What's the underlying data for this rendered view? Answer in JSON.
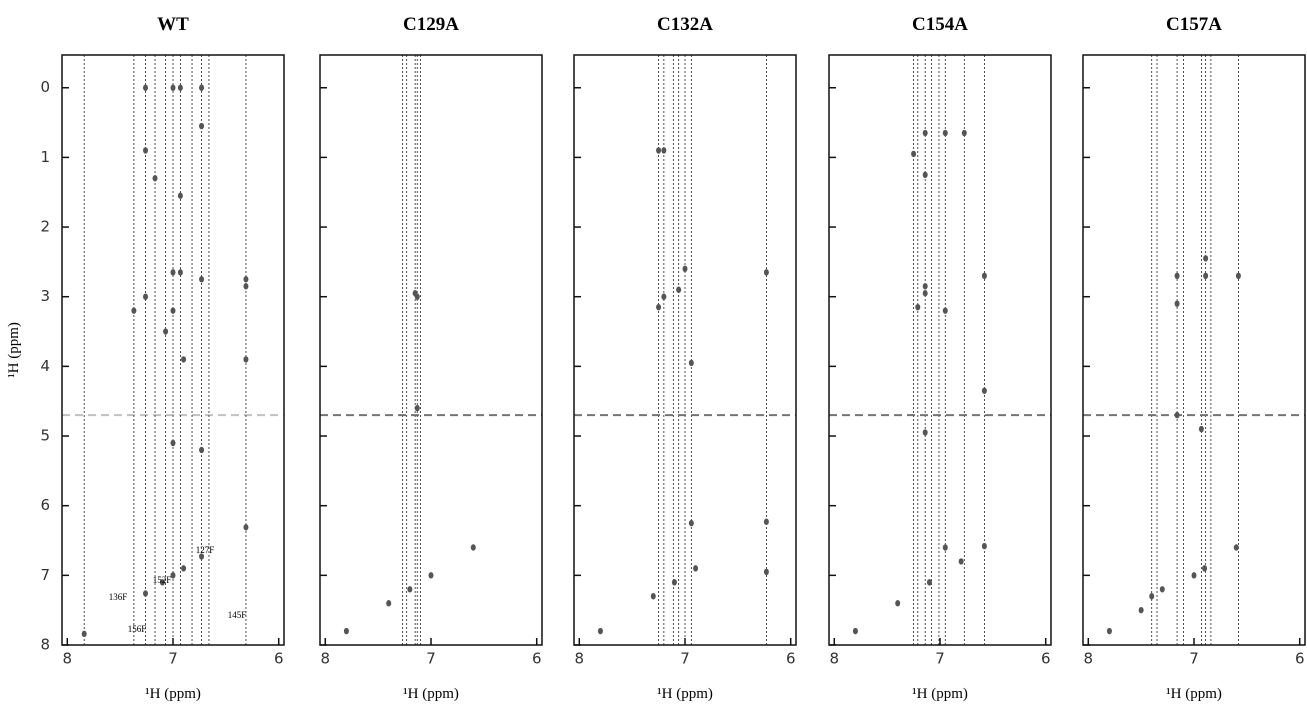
{
  "chart_data": [
    {
      "type": "scatter",
      "title": "WT",
      "xlabel": "¹H (ppm)",
      "ylabel": "¹H (ppm)",
      "color": "#555555",
      "xlim": [
        8.05,
        5.95
      ],
      "ylim": [
        -0.47,
        8
      ],
      "xticks": [
        8,
        7,
        6
      ],
      "yticks": [
        0,
        1,
        2,
        3,
        4,
        5,
        6,
        7,
        8
      ],
      "vlines": [
        7.84,
        7.37,
        7.26,
        7.17,
        7.07,
        7.0,
        6.93,
        6.82,
        6.73,
        6.66,
        6.31
      ],
      "hlines": [
        4.7
      ],
      "annotations": [
        "127F",
        "152F",
        "136F",
        "145F",
        "156F"
      ],
      "x": [
        7.26,
        7.0,
        6.93,
        6.73,
        6.73,
        7.26,
        7.17,
        6.93,
        7.26,
        7.0,
        6.93,
        6.73,
        6.31,
        6.31,
        7.37,
        7.0,
        7.07,
        6.9,
        6.31,
        6.73,
        7.0,
        7.84,
        7.26,
        7.0,
        6.73,
        6.31,
        7.1,
        6.9
      ],
      "y": [
        0,
        0,
        0,
        0,
        0.55,
        0.9,
        1.3,
        1.55,
        3.0,
        2.65,
        2.65,
        2.75,
        2.75,
        2.85,
        3.2,
        3.2,
        3.5,
        3.9,
        3.9,
        5.2,
        5.1,
        7.84,
        7.26,
        7.0,
        6.73,
        6.31,
        7.1,
        6.9
      ]
    },
    {
      "type": "scatter",
      "title": "C129A",
      "xlabel": "¹H (ppm)",
      "color": "#555555",
      "xlim": [
        8.05,
        5.95
      ],
      "ylim": [
        -0.47,
        8
      ],
      "xticks": [
        8,
        7,
        6
      ],
      "yticks": [
        0,
        1,
        2,
        3,
        4,
        5,
        6,
        7,
        8
      ],
      "vlines": [
        7.27,
        7.23,
        7.15,
        7.13,
        7.1
      ],
      "hlines": [
        4.7
      ],
      "x": [
        7.13,
        7.15,
        7.13,
        7.2,
        7.0,
        6.6,
        7.8,
        7.4
      ],
      "y": [
        3.0,
        2.95,
        4.6,
        7.2,
        7.0,
        6.6,
        7.8,
        7.4
      ]
    },
    {
      "type": "scatter",
      "title": "C132A",
      "xlabel": "¹H (ppm)",
      "color": "#555555",
      "xlim": [
        8.05,
        5.95
      ],
      "ylim": [
        -0.47,
        8
      ],
      "xticks": [
        8,
        7,
        6
      ],
      "yticks": [
        0,
        1,
        2,
        3,
        4,
        5,
        6,
        7,
        8
      ],
      "vlines": [
        7.25,
        7.2,
        7.11,
        7.06,
        7.0,
        6.94,
        6.23
      ],
      "hlines": [
        4.7
      ],
      "x": [
        7.25,
        7.2,
        7.2,
        7.25,
        7.06,
        7.0,
        6.23,
        6.94,
        6.94,
        6.23,
        6.23,
        7.1,
        7.3,
        7.8,
        6.9
      ],
      "y": [
        0.9,
        0.9,
        3.0,
        3.15,
        2.9,
        2.6,
        2.65,
        3.95,
        6.25,
        6.23,
        6.95,
        7.1,
        7.3,
        7.8,
        6.9
      ]
    },
    {
      "type": "scatter",
      "title": "C154A",
      "xlabel": "¹H (ppm)",
      "color": "#555555",
      "xlim": [
        8.05,
        5.95
      ],
      "ylim": [
        -0.47,
        8
      ],
      "xticks": [
        8,
        7,
        6
      ],
      "yticks": [
        0,
        1,
        2,
        3,
        4,
        5,
        6,
        7,
        8
      ],
      "vlines": [
        7.25,
        7.21,
        7.14,
        7.08,
        7.01,
        6.95,
        6.77,
        6.58
      ],
      "hlines": [
        4.7
      ],
      "x": [
        7.14,
        6.95,
        6.77,
        7.25,
        7.14,
        7.14,
        7.14,
        6.58,
        7.21,
        6.95,
        6.58,
        7.14,
        6.95,
        6.58,
        7.1,
        6.8,
        7.4,
        7.8
      ],
      "y": [
        0.65,
        0.65,
        0.65,
        0.95,
        1.25,
        2.85,
        2.95,
        2.7,
        3.15,
        3.2,
        4.35,
        4.95,
        6.6,
        6.58,
        7.1,
        6.8,
        7.4,
        7.8
      ]
    },
    {
      "type": "scatter",
      "title": "C157A",
      "xlabel": "¹H (ppm)",
      "color": "#555555",
      "xlim": [
        8.05,
        5.95
      ],
      "ylim": [
        -0.47,
        8
      ],
      "xticks": [
        8,
        7,
        6
      ],
      "yticks": [
        0,
        1,
        2,
        3,
        4,
        5,
        6,
        7,
        8
      ],
      "vlines": [
        7.4,
        7.35,
        7.16,
        7.1,
        6.93,
        6.89,
        6.84,
        6.58
      ],
      "hlines": [
        4.7
      ],
      "x": [
        7.16,
        6.89,
        6.89,
        6.58,
        7.16,
        6.93,
        7.16,
        7.0,
        7.3,
        7.4,
        6.6,
        7.8,
        7.5,
        6.9
      ],
      "y": [
        2.7,
        2.45,
        2.7,
        2.7,
        3.1,
        4.9,
        4.7,
        7.0,
        7.2,
        7.3,
        6.6,
        7.8,
        7.5,
        6.9
      ]
    }
  ]
}
